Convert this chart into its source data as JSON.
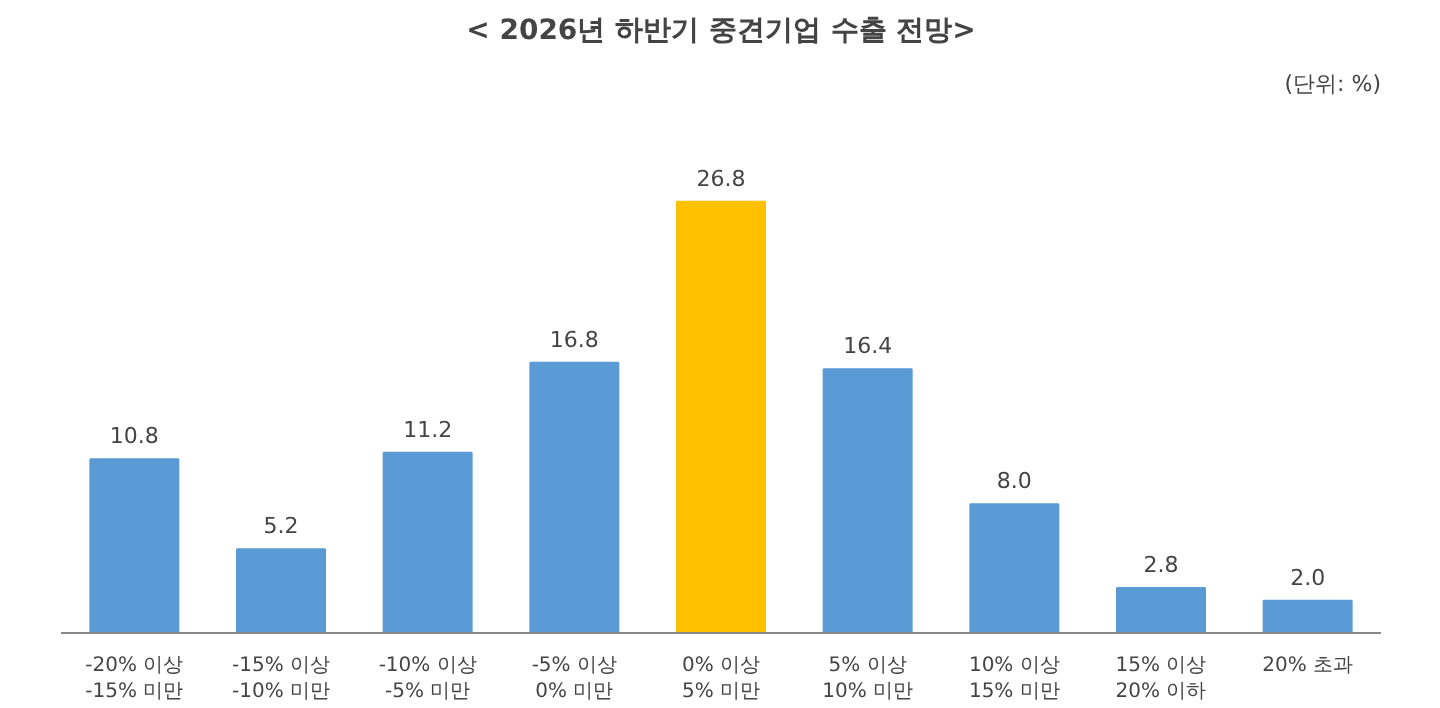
{
  "chart_data": {
    "type": "bar",
    "title": "< 2026년 하반기 중견기업 수출 전망>",
    "annotations": [
      "(단위: %)"
    ],
    "categories": [
      "-20% 이상\n-15% 미만",
      "-15% 이상\n-10% 미만",
      "-10% 이상\n-5% 미만",
      "-5% 이상\n0% 미만",
      "0% 이상\n5% 미만",
      "5% 이상\n10% 미만",
      "10% 이상\n15% 미만",
      "15% 이상\n20% 이하",
      "20% 초과"
    ],
    "values": [
      10.8,
      5.2,
      11.2,
      16.8,
      26.8,
      16.4,
      8.0,
      2.8,
      2.0
    ],
    "colors": [
      "#5b9bd5",
      "#5b9bd5",
      "#5b9bd5",
      "#5b9bd5",
      "#ffc000",
      "#5b9bd5",
      "#5b9bd5",
      "#5b9bd5",
      "#5b9bd5"
    ],
    "value_labels": [
      "10.8",
      "5.2",
      "11.2",
      "16.8",
      "26.8",
      "16.4",
      "8.0",
      "2.8",
      "2.0"
    ],
    "grid": false
  }
}
